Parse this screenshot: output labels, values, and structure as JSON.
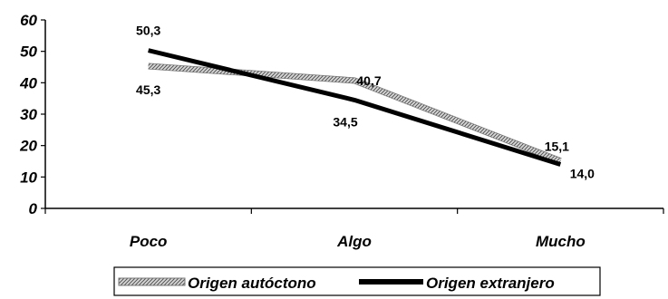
{
  "chart_data": {
    "type": "line",
    "categories": [
      "Poco",
      "Algo",
      "Mucho"
    ],
    "y_ticks": [
      "0",
      "10",
      "20",
      "30",
      "40",
      "50",
      "60"
    ],
    "ylim": [
      0,
      60
    ],
    "grid": false,
    "legend_position": "bottom",
    "series": [
      {
        "name": "Origen autóctono",
        "values": [
          45.3,
          40.7,
          15.1
        ],
        "value_labels": [
          "45,3",
          "40,7",
          "15,1"
        ],
        "style": "hatched-gray",
        "color": "#8c8c8c"
      },
      {
        "name": "Origen extranjero",
        "values": [
          50.3,
          34.5,
          14.0
        ],
        "value_labels": [
          "50,3",
          "34,5",
          "14,0"
        ],
        "style": "solid-black",
        "color": "#000000"
      }
    ]
  }
}
